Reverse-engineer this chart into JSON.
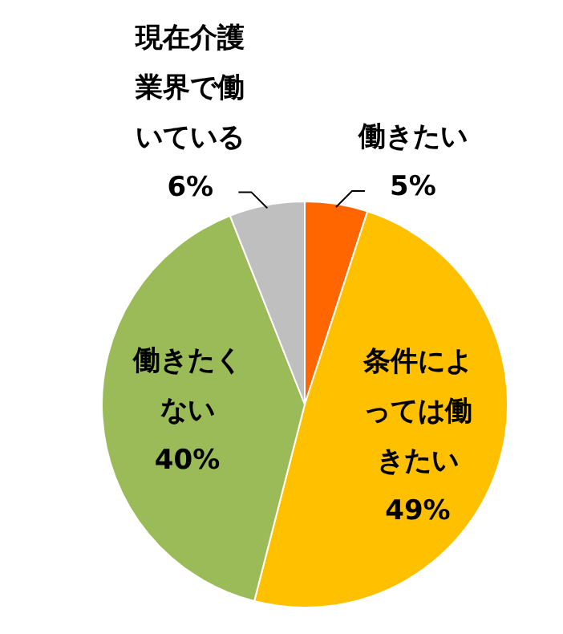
{
  "chart_data": {
    "type": "pie",
    "categories": [
      "働きたい",
      "条件によっては働きたい",
      "働きたくない",
      "現在介護業界で働いている"
    ],
    "values": [
      5,
      49,
      40,
      6
    ],
    "colors": [
      "#ff6600",
      "#ffc000",
      "#9bbb59",
      "#bfbfbf"
    ],
    "value_labels": [
      "5%",
      "49%",
      "40%",
      "6%"
    ],
    "legend": false
  }
}
